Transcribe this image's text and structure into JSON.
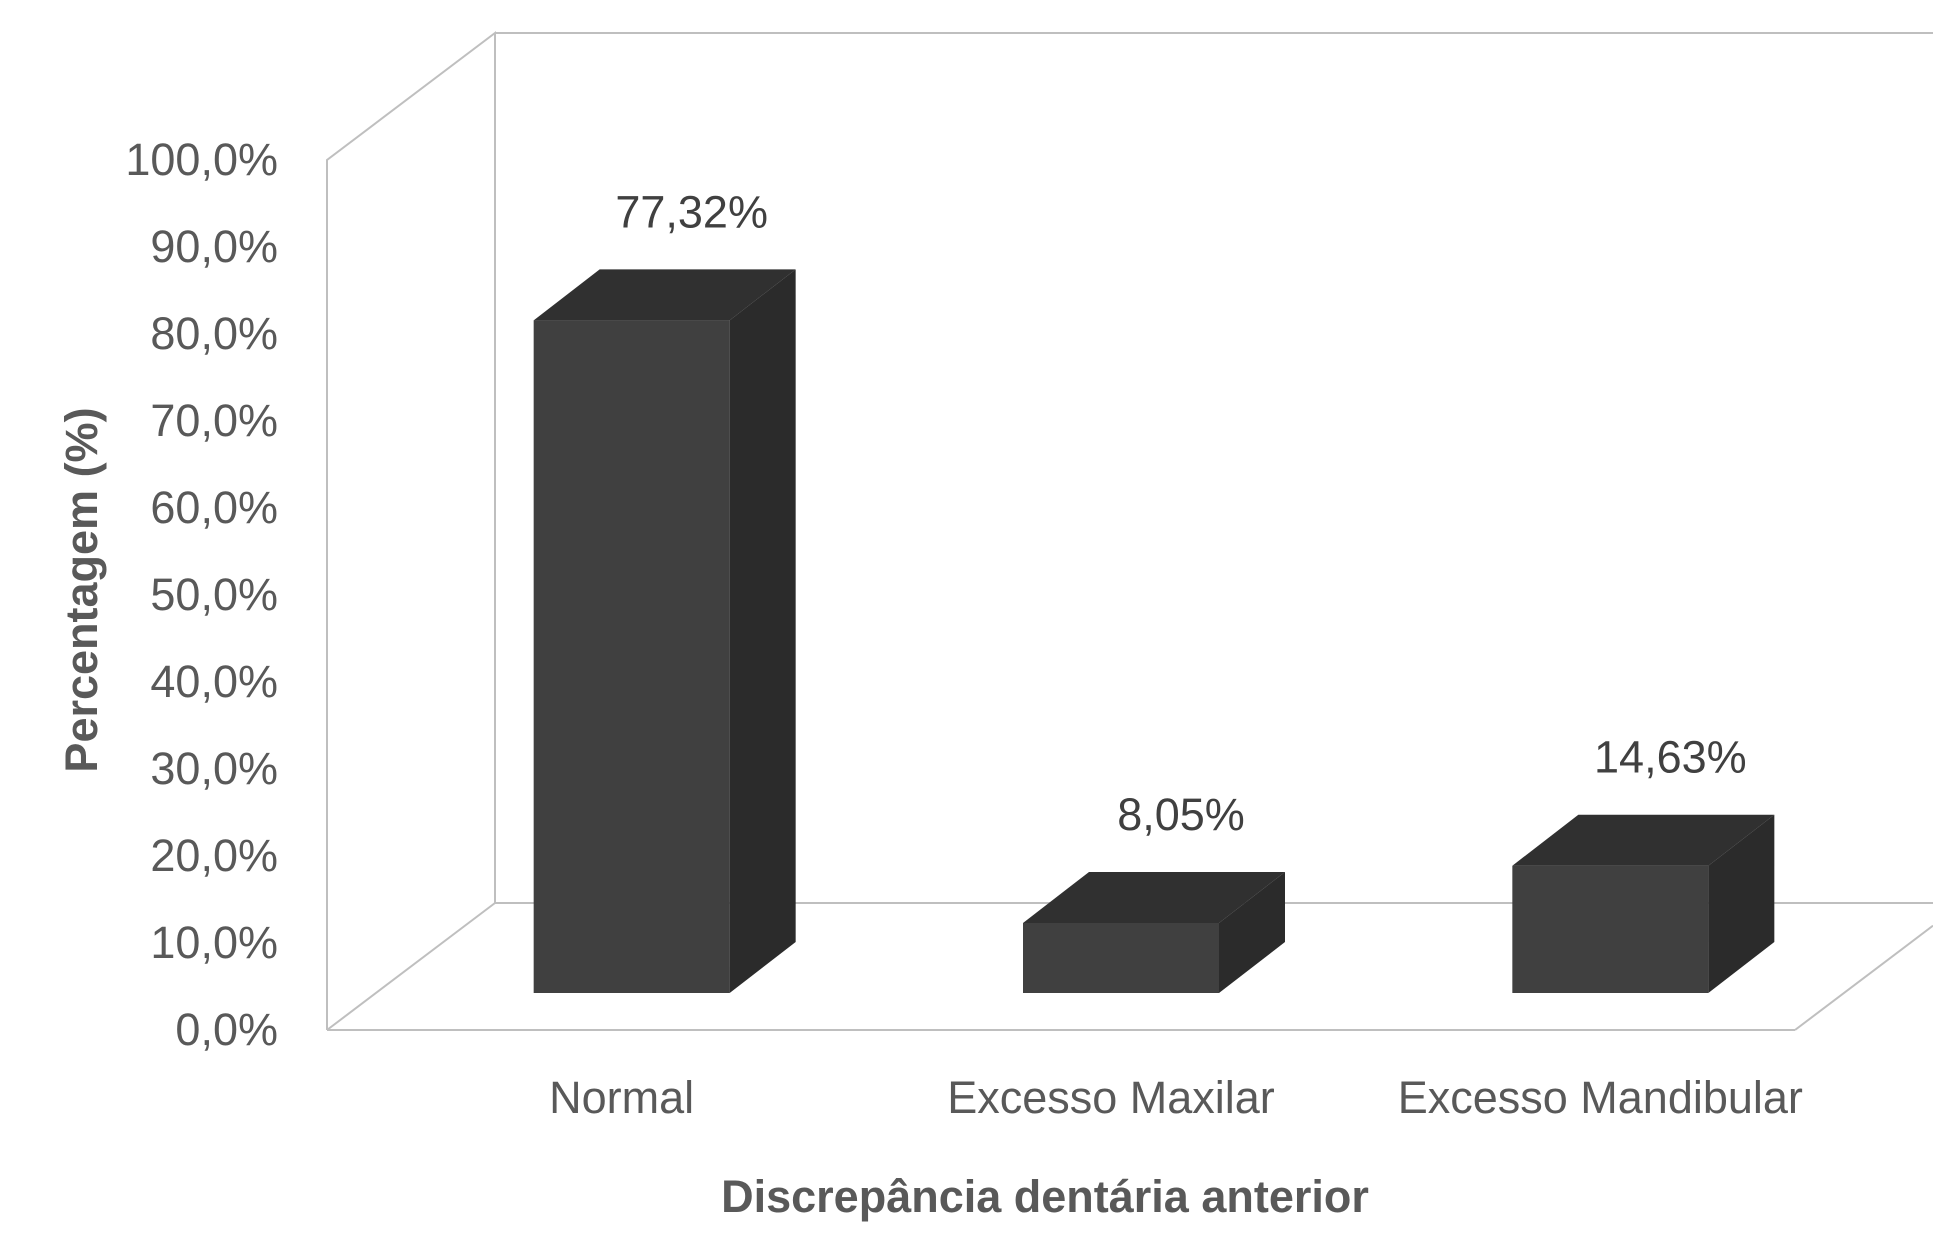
{
  "chart_data": {
    "type": "bar",
    "title": "",
    "xlabel": "Discrepância dentária anterior",
    "ylabel": "Percentagem (%)",
    "categories": [
      "Normal",
      "Excesso Maxilar",
      "Excesso Mandibular"
    ],
    "values": [
      77.32,
      8.05,
      14.63
    ],
    "data_labels": [
      "77,32%",
      "8,05%",
      "14,63%"
    ],
    "ylim": [
      0,
      100
    ],
    "y_ticks": [
      0,
      10,
      20,
      30,
      40,
      50,
      60,
      70,
      80,
      90,
      100
    ],
    "y_tick_labels": [
      "0,0%",
      "10,0%",
      "20,0%",
      "30,0%",
      "40,0%",
      "50,0%",
      "60,0%",
      "70,0%",
      "80,0%",
      "90,0%",
      "100,0%"
    ],
    "grid": false,
    "style": "3d-column",
    "colors": {
      "bar_front": "#404040",
      "bar_side": "#2b2b2b",
      "bar_top": "#303030",
      "frame": "#bfbfbf",
      "tick_text": "#595959",
      "label_text": "#404040"
    }
  }
}
